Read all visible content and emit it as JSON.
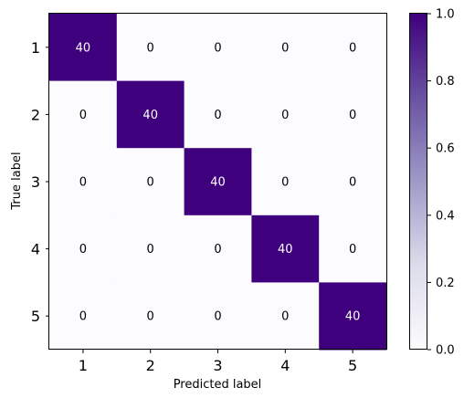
{
  "chart_data": {
    "type": "heatmap",
    "title": "",
    "xlabel": "Predicted label",
    "ylabel": "True label",
    "x_categories": [
      "1",
      "2",
      "3",
      "4",
      "5"
    ],
    "y_categories": [
      "1",
      "2",
      "3",
      "4",
      "5"
    ],
    "values": [
      [
        40,
        0,
        0,
        0,
        0
      ],
      [
        0,
        40,
        0,
        0,
        0
      ],
      [
        0,
        0,
        40,
        0,
        0
      ],
      [
        0,
        0,
        0,
        40,
        0
      ],
      [
        0,
        0,
        0,
        0,
        40
      ]
    ],
    "normalized": [
      [
        1,
        0,
        0,
        0,
        0
      ],
      [
        0,
        1,
        0,
        0,
        0
      ],
      [
        0,
        0,
        1,
        0,
        0
      ],
      [
        0,
        0,
        0,
        1,
        0
      ],
      [
        0,
        0,
        0,
        0,
        1
      ]
    ],
    "colormap": "Purples",
    "color_low": "#fcfbfd",
    "color_high": "#3f007d",
    "text_dark": "#000000",
    "text_light": "#ffffff",
    "colorbar": {
      "range": [
        0.0,
        1.0
      ],
      "ticks": [
        "0.0",
        "0.2",
        "0.4",
        "0.6",
        "0.8",
        "1.0"
      ]
    },
    "grid": false
  }
}
